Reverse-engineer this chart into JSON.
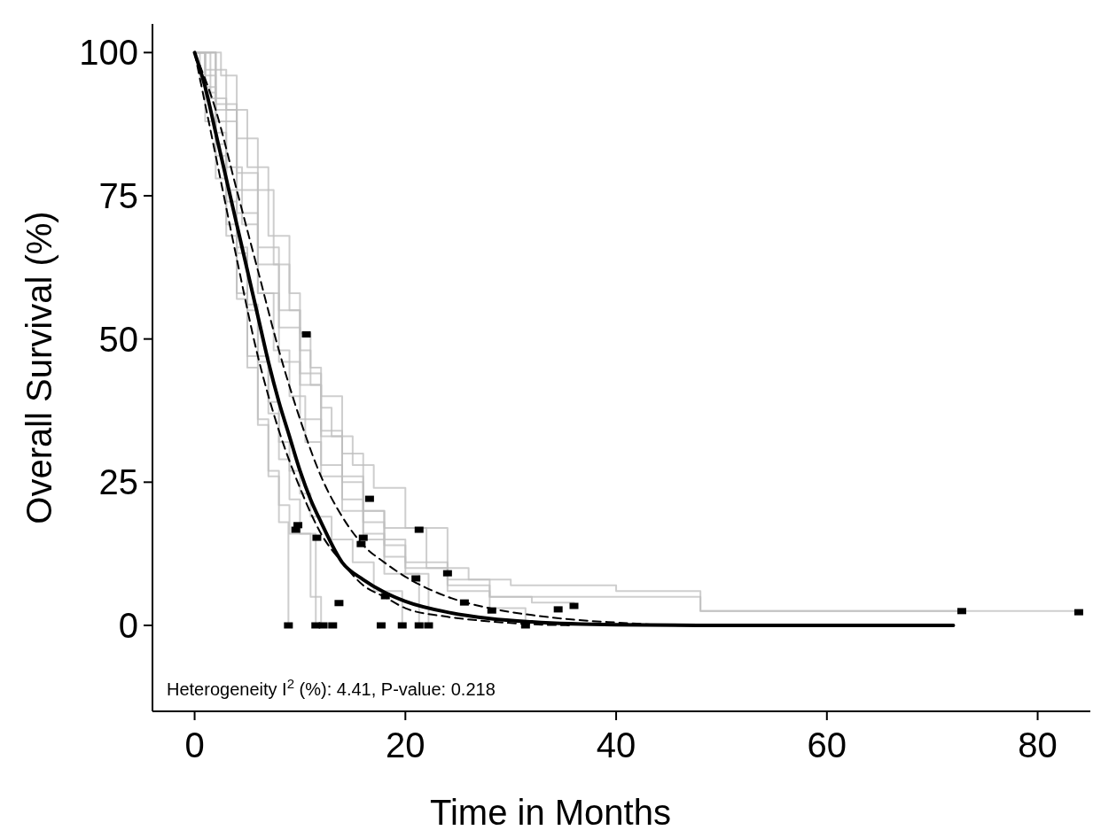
{
  "chart_data": {
    "type": "line",
    "xlabel": "Time in Months",
    "ylabel": "Overall Survival (%)",
    "xlim": [
      -4,
      85
    ],
    "ylim": [
      -15,
      105
    ],
    "xticks": [
      0,
      20,
      40,
      60,
      80
    ],
    "yticks": [
      0,
      25,
      50,
      75,
      100
    ],
    "grid": false,
    "annotations": [
      "Heterogeneity I$^{2}$ (%): 4.41, P-value: 0.218"
    ],
    "series": [
      {
        "type": "step",
        "color": "#bdbdbd",
        "x": [
          0,
          2,
          2.5,
          4,
          6,
          7.5,
          9,
          10,
          11,
          12,
          13,
          15,
          17,
          20,
          24,
          28,
          48,
          84
        ],
        "values": [
          100,
          100,
          96,
          85,
          76,
          63,
          55,
          48,
          42,
          38,
          33,
          28,
          24,
          17,
          7,
          5,
          2.5,
          2.5
        ]
      },
      {
        "type": "step",
        "color": "#bdbdbd",
        "x": [
          0,
          1,
          3,
          5,
          7,
          9,
          10,
          11,
          12,
          14,
          16,
          18,
          22,
          26,
          30,
          34,
          40,
          48,
          72.8
        ],
        "values": [
          100,
          97,
          90,
          80,
          68,
          58,
          51,
          45,
          40,
          30,
          20,
          17,
          10,
          8,
          7,
          7,
          6,
          2.5,
          2.5
        ]
      },
      {
        "type": "step",
        "color": "#bdbdbd",
        "x": [
          0,
          0.5,
          1,
          2,
          3,
          4,
          5,
          6,
          7,
          8,
          9,
          11,
          12
        ],
        "values": [
          100,
          95,
          88,
          78,
          68,
          57,
          45,
          35,
          27,
          21,
          16,
          5,
          0
        ]
      },
      {
        "type": "step",
        "color": "#bdbdbd",
        "x": [
          0,
          1,
          2,
          3,
          4,
          5,
          6,
          7,
          8,
          9,
          10,
          11,
          13,
          15,
          17,
          19.7
        ],
        "values": [
          100,
          94,
          84,
          74,
          65,
          56,
          47,
          39,
          32,
          27,
          23,
          19,
          15,
          11,
          6,
          0
        ]
      },
      {
        "type": "step",
        "color": "#bdbdbd",
        "x": [
          0,
          1.5,
          3,
          4.5,
          6,
          7.5,
          9,
          10.5,
          12,
          14,
          16,
          18,
          21.3
        ],
        "values": [
          100,
          92,
          80,
          70,
          58,
          48,
          40,
          32,
          26,
          20,
          15,
          9,
          0
        ]
      },
      {
        "type": "step",
        "color": "#bdbdbd",
        "x": [
          0,
          1,
          2,
          3,
          4,
          5,
          6,
          7,
          8,
          8.9
        ],
        "values": [
          100,
          93,
          82,
          70,
          58,
          47,
          36,
          26,
          18,
          0
        ]
      },
      {
        "type": "step",
        "color": "#bdbdbd",
        "x": [
          0,
          2,
          4,
          6,
          8,
          10,
          12,
          14,
          16,
          18,
          20,
          22.2
        ],
        "values": [
          100,
          88,
          72,
          58,
          46,
          36,
          28,
          22,
          16,
          12,
          9,
          0
        ]
      },
      {
        "type": "step",
        "color": "#bdbdbd",
        "x": [
          0,
          2,
          4,
          6,
          8,
          10,
          12,
          14,
          16,
          18,
          20,
          24,
          28,
          31.4
        ],
        "values": [
          100,
          90,
          76,
          63,
          52,
          42,
          33,
          25,
          18,
          14,
          10,
          6,
          3,
          0
        ]
      },
      {
        "type": "step",
        "color": "#bdbdbd",
        "x": [
          0,
          1,
          2,
          3,
          4,
          5,
          6,
          7,
          8,
          9,
          10,
          11.5
        ],
        "values": [
          100,
          96,
          86,
          76,
          66,
          55,
          46,
          37,
          29,
          22,
          16,
          0
        ]
      },
      {
        "type": "step",
        "color": "#bdbdbd",
        "x": [
          0,
          2,
          4,
          6,
          8,
          10,
          12,
          14,
          16,
          18,
          20,
          24,
          28,
          32,
          36
        ],
        "values": [
          100,
          91,
          79,
          66,
          55,
          44,
          34,
          26,
          20,
          15,
          11,
          8,
          5,
          4,
          3.4
        ]
      },
      {
        "color": "#000000",
        "line_style": "dashed",
        "x": [
          0,
          2,
          4,
          6,
          8,
          10,
          12,
          14,
          16,
          18,
          20,
          24,
          28,
          32,
          36,
          40,
          45
        ],
        "values": [
          100,
          90,
          76,
          62,
          48,
          36,
          26,
          19,
          14,
          11,
          8.5,
          5,
          3,
          1.8,
          1,
          0.5,
          0
        ]
      },
      {
        "color": "#000000",
        "line_style": "dashed",
        "x": [
          0,
          2,
          4,
          6,
          8,
          10,
          12,
          14,
          16,
          18,
          20,
          24,
          28,
          32,
          36
        ],
        "values": [
          100,
          82,
          64,
          47,
          34,
          24,
          16,
          11,
          7,
          5,
          3,
          1.5,
          0.7,
          0.2,
          0
        ]
      },
      {
        "color": "#000000",
        "line_style": "solid",
        "x": [
          0,
          1,
          2,
          3,
          4,
          5,
          6,
          7,
          8,
          9,
          10,
          11,
          12,
          14,
          16,
          18,
          20,
          24,
          28,
          32,
          40,
          50,
          72
        ],
        "values": [
          100,
          94,
          86,
          78,
          70,
          62,
          54,
          46,
          39,
          33,
          27,
          22,
          18,
          11,
          8,
          5.8,
          4.2,
          2.3,
          1.2,
          0.6,
          0.1,
          0,
          0
        ]
      },
      {
        "type": "scatter",
        "color": "#000000",
        "marker": "square",
        "x": [
          10.6,
          16.6,
          9.6,
          9.8,
          11.6,
          16,
          15.8,
          21.3,
          24,
          21,
          18.1,
          13.7,
          25.6,
          28.2,
          34.5,
          36,
          72.8,
          83.9,
          8.9,
          11.5,
          12.2,
          13.1,
          17.7,
          19.7,
          21.3,
          22.2,
          31.4
        ],
        "values": [
          50.8,
          22.1,
          16.7,
          17.5,
          15.3,
          15.3,
          14.2,
          16.7,
          9.1,
          8.2,
          5.1,
          3.9,
          4,
          2.6,
          2.8,
          3.4,
          2.5,
          2.3,
          0,
          0,
          0,
          0,
          0,
          0,
          0,
          0,
          0
        ]
      }
    ]
  }
}
